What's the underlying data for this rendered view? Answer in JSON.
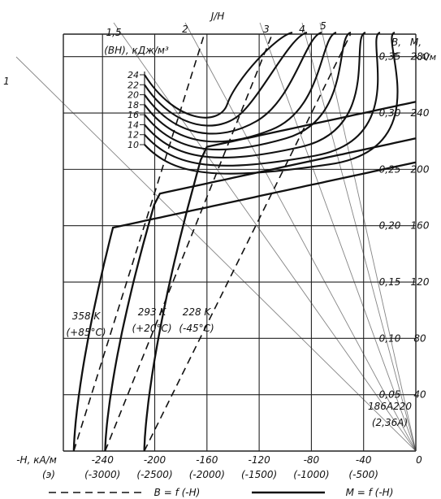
{
  "chart_data": {
    "type": "line",
    "title": "",
    "x_axis": {
      "label_line1": "-H, кА/м",
      "label_line2": "(э)",
      "range": [
        -270,
        0
      ],
      "ticks": [
        {
          "value": -240,
          "label": "-240",
          "oe": "(-3000)"
        },
        {
          "value": -200,
          "label": "-200",
          "oe": "(-2500)"
        },
        {
          "value": -160,
          "label": "-160",
          "oe": "(-2000)"
        },
        {
          "value": -120,
          "label": "-120",
          "oe": "(-1500)"
        },
        {
          "value": -80,
          "label": "-80",
          "oe": "(-1000)"
        },
        {
          "value": -40,
          "label": "-40",
          "oe": "(-500)"
        },
        {
          "value": 0,
          "label": "0",
          "oe": ""
        }
      ]
    },
    "y_axis_B": {
      "label": "B,",
      "unit": "Т",
      "range": [
        0,
        0.37
      ],
      "ticks": [
        {
          "value": 0.05,
          "label": "0,05"
        },
        {
          "value": 0.1,
          "label": "0,10"
        },
        {
          "value": 0.15,
          "label": "0,15"
        },
        {
          "value": 0.2,
          "label": "0,20"
        },
        {
          "value": 0.25,
          "label": "0,25"
        },
        {
          "value": 0.3,
          "label": "0,30"
        },
        {
          "value": 0.35,
          "label": "0,35"
        }
      ]
    },
    "y_axis_M": {
      "label": "M,",
      "unit": "кА/м",
      "ticks": [
        {
          "value": 40,
          "label": "40"
        },
        {
          "value": 80,
          "label": "80"
        },
        {
          "value": 120,
          "label": "120"
        },
        {
          "value": 160,
          "label": "160"
        },
        {
          "value": 200,
          "label": "200"
        },
        {
          "value": 240,
          "label": "240"
        },
        {
          "value": 280,
          "label": "280"
        }
      ]
    },
    "bh_axis": {
      "label": "(BH), кДж/м³",
      "ticks": [
        {
          "value": 10,
          "label": "10"
        },
        {
          "value": 12,
          "label": "12"
        },
        {
          "value": 14,
          "label": "14"
        },
        {
          "value": 16,
          "label": "16"
        },
        {
          "value": 18,
          "label": "18"
        },
        {
          "value": 20,
          "label": "20"
        },
        {
          "value": 22,
          "label": "22"
        },
        {
          "value": 24,
          "label": "24"
        }
      ]
    },
    "jh_axis": {
      "label": "J/H",
      "ticks": [
        {
          "label": "1"
        },
        {
          "label": "1,5"
        },
        {
          "label": "2"
        },
        {
          "label": "3"
        },
        {
          "label": "4"
        },
        {
          "label": "5"
        }
      ]
    },
    "series_M": [
      {
        "label": "358 K",
        "sub": "(+85°C)",
        "Mr": 205,
        "slope": 0.2,
        "Hk": -232,
        "Hc": -262
      },
      {
        "label": "293 K",
        "sub": "(+20°C)",
        "Mr": 222,
        "slope": 0.2,
        "Hk": -198,
        "Hc": -238
      },
      {
        "label": "228 K",
        "sub": "(-45°C)",
        "Mr": 248,
        "slope": 0.2,
        "Hk": -162,
        "Hc": -208
      }
    ],
    "series_B": [
      {
        "label": "358 K",
        "x_at_B0": -262,
        "x_at_top": -162
      },
      {
        "label": "293 K",
        "x_at_B0": -238,
        "x_at_top": -110
      },
      {
        "label": "228 K",
        "x_at_B0": -208,
        "x_at_top": -50
      }
    ],
    "material": {
      "line1": "186А220",
      "line2": "(2,36А)"
    },
    "legend": [
      {
        "style": "dashed",
        "text": "B = f (-H)"
      },
      {
        "style": "solid",
        "text": "M = f (-H)"
      }
    ]
  }
}
